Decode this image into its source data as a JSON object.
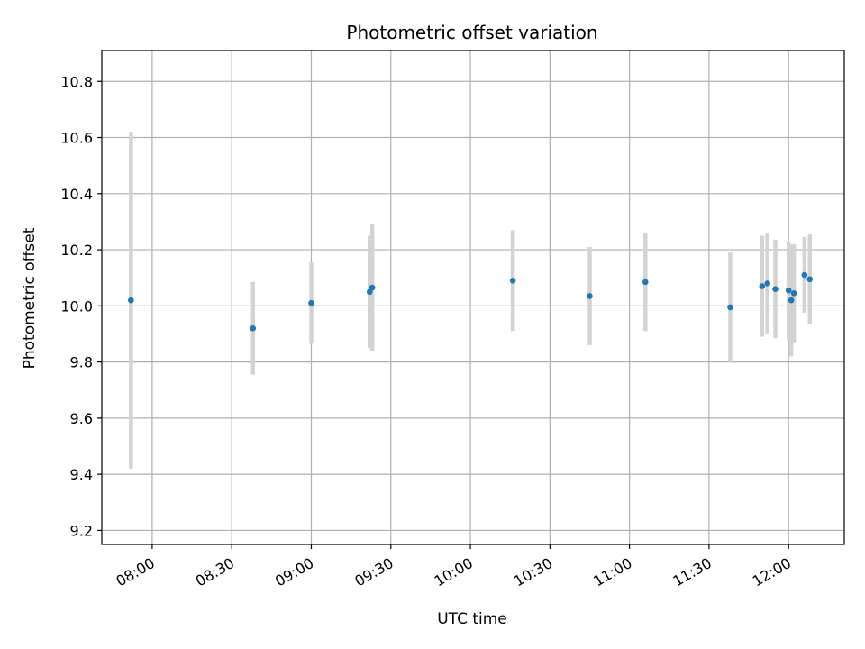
{
  "chart_data": {
    "type": "scatter",
    "title": "Photometric offset variation",
    "xlabel": "UTC time",
    "ylabel": "Photometric offset",
    "x_tick_labels": [
      "08:00",
      "08:30",
      "09:00",
      "09:30",
      "10:00",
      "10:30",
      "11:00",
      "11:30",
      "12:00"
    ],
    "y_tick_labels": [
      "9.2",
      "9.4",
      "9.6",
      "9.8",
      "10.0",
      "10.2",
      "10.4",
      "10.6",
      "10.8"
    ],
    "x_ticks": [
      "08:00",
      "08:30",
      "09:00",
      "09:30",
      "10:00",
      "10:30",
      "11:00",
      "11:30",
      "12:00"
    ],
    "y_ticks": [
      9.2,
      9.4,
      9.6,
      9.8,
      10.0,
      10.2,
      10.4,
      10.6,
      10.8
    ],
    "xlim": [
      "07:41",
      "12:21"
    ],
    "ylim": [
      9.15,
      10.91
    ],
    "grid": true,
    "marker_color": "#1f77b4",
    "errorbar_color": "#d3d3d3",
    "points": [
      {
        "x": "07:52",
        "y": 10.02,
        "yerr": 0.6
      },
      {
        "x": "08:38",
        "y": 9.92,
        "yerr": 0.165
      },
      {
        "x": "09:00",
        "y": 10.01,
        "yerr": 0.145
      },
      {
        "x": "09:22",
        "y": 10.05,
        "yerr": 0.2
      },
      {
        "x": "09:23",
        "y": 10.065,
        "yerr": 0.225
      },
      {
        "x": "10:16",
        "y": 10.09,
        "yerr": 0.18
      },
      {
        "x": "10:45",
        "y": 10.035,
        "yerr": 0.175
      },
      {
        "x": "11:06",
        "y": 10.085,
        "yerr": 0.175
      },
      {
        "x": "11:38",
        "y": 9.995,
        "yerr": 0.195
      },
      {
        "x": "11:50",
        "y": 10.07,
        "yerr": 0.18
      },
      {
        "x": "11:52",
        "y": 10.08,
        "yerr": 0.18
      },
      {
        "x": "11:55",
        "y": 10.06,
        "yerr": 0.175
      },
      {
        "x": "12:00",
        "y": 10.055,
        "yerr": 0.175
      },
      {
        "x": "12:01",
        "y": 10.02,
        "yerr": 0.2
      },
      {
        "x": "12:02",
        "y": 10.045,
        "yerr": 0.175
      },
      {
        "x": "12:06",
        "y": 10.11,
        "yerr": 0.135
      },
      {
        "x": "12:08",
        "y": 10.095,
        "yerr": 0.16
      }
    ]
  }
}
